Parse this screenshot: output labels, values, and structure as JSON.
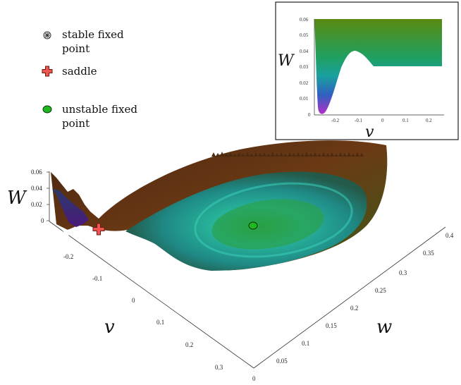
{
  "legend": {
    "items": [
      {
        "lines": [
          "stable fixed",
          "point"
        ],
        "marker": "asterisk-icon",
        "color": "#ffffff"
      },
      {
        "lines": [
          "saddle"
        ],
        "marker": "cross-icon",
        "color": "#ef5650"
      },
      {
        "lines": [
          "unstable fixed",
          "point"
        ],
        "marker": "dot-icon",
        "color": "#1fb81f"
      }
    ]
  },
  "colors": {
    "rim": "#6a2a10",
    "teal": "#26b8a6",
    "green": "#28a83a",
    "purple": "#7a2aa8",
    "blue": "#2f5fc0"
  },
  "chart_data": [
    {
      "type": "surface",
      "title": "",
      "zlabel": "W",
      "xlabel": "v",
      "ylabel": "w",
      "z_ticks": [
        "0.06",
        "0.04",
        "0.02",
        "0"
      ],
      "v_ticks": [
        "-0.2",
        "-0.1",
        "0",
        "0.1",
        "0.2",
        "0.3"
      ],
      "w_ticks": [
        "0",
        "0.05",
        "0.1",
        "0.15",
        "0.2",
        "0.25",
        "0.3",
        "0.35",
        "0.4"
      ],
      "zlim": [
        0,
        0.06
      ],
      "vlim": [
        -0.25,
        0.3
      ],
      "wlim": [
        0,
        0.4
      ],
      "points": [
        {
          "name": "stable fixed point",
          "v": -0.25,
          "w": 0.0,
          "W": 0.0
        },
        {
          "name": "saddle",
          "v": -0.12,
          "w": 0.05,
          "W": 0.03
        },
        {
          "name": "unstable fixed point",
          "v": 0.1,
          "w": 0.28,
          "W": 0.008
        }
      ]
    },
    {
      "type": "area",
      "title": "",
      "xlabel": "v",
      "ylabel": "W",
      "x_ticks": [
        "-0.2",
        "-0.1",
        "0",
        "0.1",
        "0.2"
      ],
      "y_ticks": [
        "0.06",
        "0.05",
        "0.04",
        "0.03",
        "0.02",
        "0.01",
        "0"
      ],
      "xlim": [
        -0.3,
        0.26
      ],
      "ylim": [
        0,
        0.06
      ],
      "x": [
        -0.3,
        -0.28,
        -0.27,
        -0.26,
        -0.25,
        -0.24,
        -0.22,
        -0.2,
        -0.18,
        -0.16,
        -0.14,
        -0.12,
        -0.1,
        -0.08,
        -0.06,
        -0.05,
        0.24,
        0.25
      ],
      "y": [
        0.06,
        0.045,
        0.02,
        0.005,
        0.002,
        0.006,
        0.02,
        0.03,
        0.036,
        0.041,
        0.044,
        0.04,
        0.036,
        0.032,
        0.03,
        0.03,
        0.03,
        0.06
      ]
    }
  ]
}
